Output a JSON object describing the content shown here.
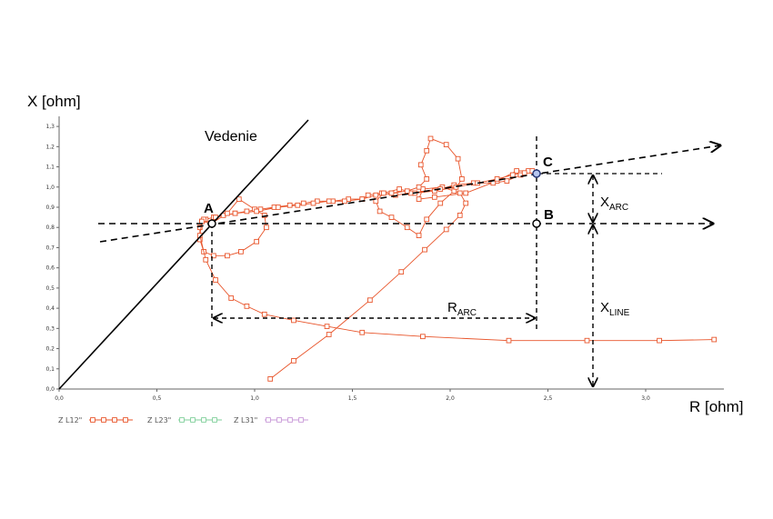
{
  "chart_data": {
    "type": "line",
    "xlabel": "R [ohm]",
    "ylabel": "X [ohm]",
    "xlim": [
      0,
      3.4
    ],
    "ylim": [
      0,
      1.35
    ],
    "x_ticks": [
      "0,0",
      "0,5",
      "1,0",
      "1,5",
      "2,0",
      "2,5",
      "3,0"
    ],
    "x_tick_values": [
      0,
      0.5,
      1.0,
      1.5,
      2.0,
      2.5,
      3.0
    ],
    "y_ticks": [
      "0,0",
      "0,1",
      "0,2",
      "0,3",
      "0,4",
      "0,5",
      "0,6",
      "0,7",
      "0,8",
      "0,9",
      "1,0",
      "1,1",
      "1,2",
      "1,3"
    ],
    "y_tick_values": [
      0,
      0.1,
      0.2,
      0.3,
      0.4,
      0.5,
      0.6,
      0.7,
      0.8,
      0.9,
      1.0,
      1.1,
      1.2,
      1.3
    ],
    "legend": [
      {
        "label": "Z L12\"",
        "color": "#e8542a"
      },
      {
        "label": "Z L23\"",
        "color": "#7fcf9a"
      },
      {
        "label": "Z L31\"",
        "color": "#c99ad8"
      }
    ],
    "series": [
      {
        "name": "Z L12\"",
        "color": "#e8542a",
        "points": [
          [
            1.08,
            0.05
          ],
          [
            1.2,
            0.14
          ],
          [
            1.38,
            0.27
          ],
          [
            1.59,
            0.44
          ],
          [
            1.75,
            0.58
          ],
          [
            1.87,
            0.69
          ],
          [
            1.98,
            0.79
          ],
          [
            2.05,
            0.86
          ],
          [
            2.08,
            0.92
          ],
          [
            2.05,
            0.97
          ],
          [
            1.96,
            1.0
          ],
          [
            1.86,
            0.99
          ],
          [
            1.84,
            0.94
          ],
          [
            1.92,
            0.95
          ],
          [
            2.08,
            0.97
          ],
          [
            2.24,
            1.03
          ],
          [
            2.34,
            1.08
          ],
          [
            2.4,
            1.08
          ],
          [
            2.36,
            1.06
          ],
          [
            2.29,
            1.03
          ],
          [
            2.22,
            1.02
          ],
          [
            2.12,
            1.02
          ],
          [
            2.02,
            1.01
          ],
          [
            1.95,
            0.99
          ],
          [
            1.8,
            0.97
          ],
          [
            1.72,
            0.96
          ],
          [
            1.65,
            0.97
          ],
          [
            1.58,
            0.96
          ],
          [
            1.55,
            0.94
          ],
          [
            1.48,
            0.94
          ],
          [
            1.4,
            0.93
          ],
          [
            1.32,
            0.93
          ],
          [
            1.25,
            0.92
          ],
          [
            1.18,
            0.91
          ],
          [
            1.1,
            0.9
          ],
          [
            1.03,
            0.89
          ],
          [
            0.96,
            0.88
          ],
          [
            0.9,
            0.87
          ],
          [
            0.84,
            0.86
          ],
          [
            0.79,
            0.85
          ],
          [
            0.75,
            0.84
          ],
          [
            0.73,
            0.83
          ],
          [
            0.78,
            0.82
          ],
          [
            0.86,
            0.87
          ],
          [
            0.92,
            0.94
          ],
          [
            1.0,
            0.89
          ],
          [
            1.05,
            0.86
          ],
          [
            1.06,
            0.8
          ],
          [
            1.01,
            0.73
          ],
          [
            0.93,
            0.68
          ],
          [
            0.86,
            0.66
          ],
          [
            0.79,
            0.66
          ],
          [
            0.74,
            0.68
          ],
          [
            0.72,
            0.74
          ],
          [
            0.72,
            0.8
          ],
          [
            0.74,
            0.84
          ],
          [
            0.8,
            0.85
          ],
          [
            0.9,
            0.87
          ],
          [
            1.01,
            0.88
          ],
          [
            1.12,
            0.9
          ],
          [
            1.22,
            0.91
          ],
          [
            1.3,
            0.92
          ],
          [
            1.38,
            0.93
          ],
          [
            1.46,
            0.93
          ],
          [
            1.55,
            0.94
          ],
          [
            1.62,
            0.96
          ],
          [
            1.7,
            0.97
          ],
          [
            1.78,
            0.98
          ],
          [
            1.84,
            1.0
          ],
          [
            1.88,
            1.04
          ],
          [
            1.85,
            1.11
          ],
          [
            1.88,
            1.18
          ],
          [
            1.9,
            1.24
          ],
          [
            1.98,
            1.21
          ],
          [
            2.04,
            1.14
          ],
          [
            2.06,
            1.04
          ],
          [
            2.02,
            0.98
          ],
          [
            1.95,
            0.92
          ],
          [
            1.88,
            0.84
          ],
          [
            1.84,
            0.76
          ],
          [
            1.78,
            0.8
          ],
          [
            1.7,
            0.85
          ],
          [
            1.64,
            0.88
          ],
          [
            1.62,
            0.93
          ],
          [
            1.66,
            0.97
          ],
          [
            1.74,
            0.99
          ],
          [
            1.82,
            0.97
          ],
          [
            1.92,
            0.98
          ],
          [
            2.03,
            1.0
          ],
          [
            2.14,
            1.02
          ],
          [
            2.24,
            1.04
          ],
          [
            2.32,
            1.06
          ],
          [
            2.38,
            1.07
          ],
          [
            2.42,
            1.08
          ]
        ]
      },
      {
        "name": "Z L12\"",
        "color": "#e8542a",
        "points": [
          [
            0.73,
            0.83
          ],
          [
            0.72,
            0.76
          ],
          [
            0.75,
            0.64
          ],
          [
            0.8,
            0.54
          ],
          [
            0.88,
            0.45
          ],
          [
            0.96,
            0.41
          ],
          [
            1.05,
            0.37
          ],
          [
            1.2,
            0.34
          ],
          [
            1.37,
            0.31
          ],
          [
            1.55,
            0.28
          ],
          [
            1.86,
            0.26
          ],
          [
            2.3,
            0.24
          ],
          [
            2.7,
            0.24
          ],
          [
            3.07,
            0.24
          ],
          [
            3.35,
            0.245
          ]
        ]
      }
    ],
    "annotations": {
      "line_label": "Vedenie",
      "point_A": "A",
      "point_B": "B",
      "point_C": "C",
      "r_arc": "R",
      "r_arc_sub": "ARC",
      "x_arc": "X",
      "x_arc_sub": "ARC",
      "x_line": "X",
      "x_line_sub": "LINE"
    }
  }
}
